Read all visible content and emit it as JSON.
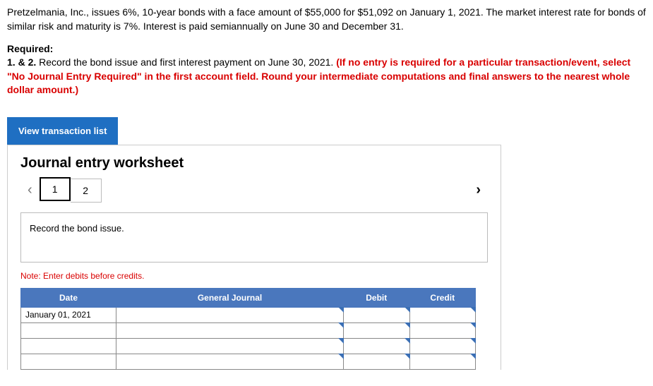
{
  "problem": {
    "text": "Pretzelmania, Inc., issues 6%, 10-year bonds with a face amount of $55,000 for $51,092 on January 1, 2021. The market interest rate for bonds of similar risk and maturity is 7%. Interest is paid semiannually on June 30 and December 31."
  },
  "required": {
    "label": "Required:",
    "lead": "1. & 2. ",
    "body": "Record the bond issue and first interest payment on June 30, 2021. ",
    "emph": "(If no entry is required for a particular transaction/event, select \"No Journal Entry Required\" in the first account field. Round your intermediate computations and final answers to the nearest whole dollar amount.)"
  },
  "buttons": {
    "view_list": "View transaction list"
  },
  "worksheet": {
    "title": "Journal entry worksheet",
    "tabs": [
      "1",
      "2"
    ],
    "chev_left": "‹",
    "chev_right": "›",
    "instruction": "Record the bond issue.",
    "note": "Note: Enter debits before credits.",
    "headers": {
      "date": "Date",
      "gj": "General Journal",
      "debit": "Debit",
      "credit": "Credit"
    },
    "rows": [
      {
        "date": "January 01, 2021"
      },
      {
        "date": ""
      },
      {
        "date": ""
      },
      {
        "date": ""
      }
    ]
  }
}
